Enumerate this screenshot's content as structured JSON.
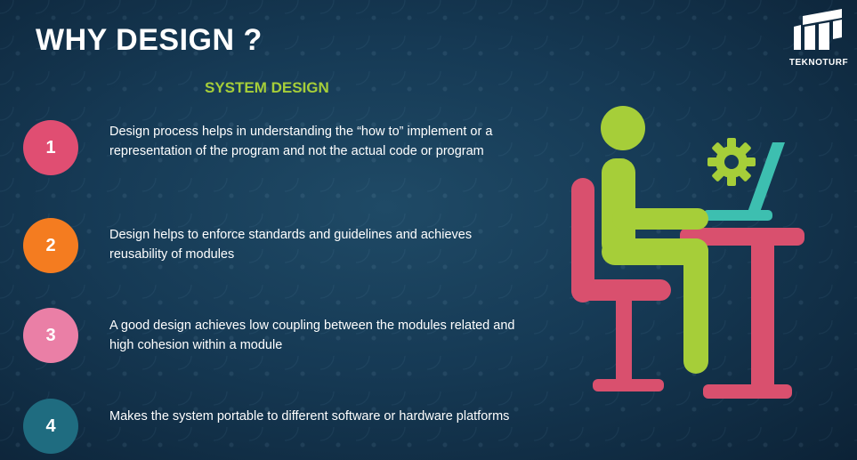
{
  "slide": {
    "title": "WHY DESIGN ?",
    "subtitle": "SYSTEM DESIGN",
    "logo": {
      "label": "TEKNOTURF",
      "icon": "teknoturf-logo-icon"
    },
    "points": [
      {
        "number": "1",
        "color": "#e04e72",
        "text": "Design process helps in understanding the “how to” implement or a representation of the program and not the actual code or program"
      },
      {
        "number": "2",
        "color": "#f47c20",
        "text": "Design helps to enforce standards and guidelines and achieves reusability of modules"
      },
      {
        "number": "3",
        "color": "#ea7fa6",
        "text": "A good design achieves low coupling between the modules related and high cohesion within a module"
      },
      {
        "number": "4",
        "color": "#1f6c80",
        "text": "Makes the system portable to different software or hardware platforms"
      }
    ],
    "illustration": {
      "icon": "person-at-computer-icon",
      "colors": {
        "person": "#a6ce39",
        "furniture": "#d9506e",
        "laptop": "#3dbfb0",
        "gear": "#a6ce39"
      }
    }
  }
}
